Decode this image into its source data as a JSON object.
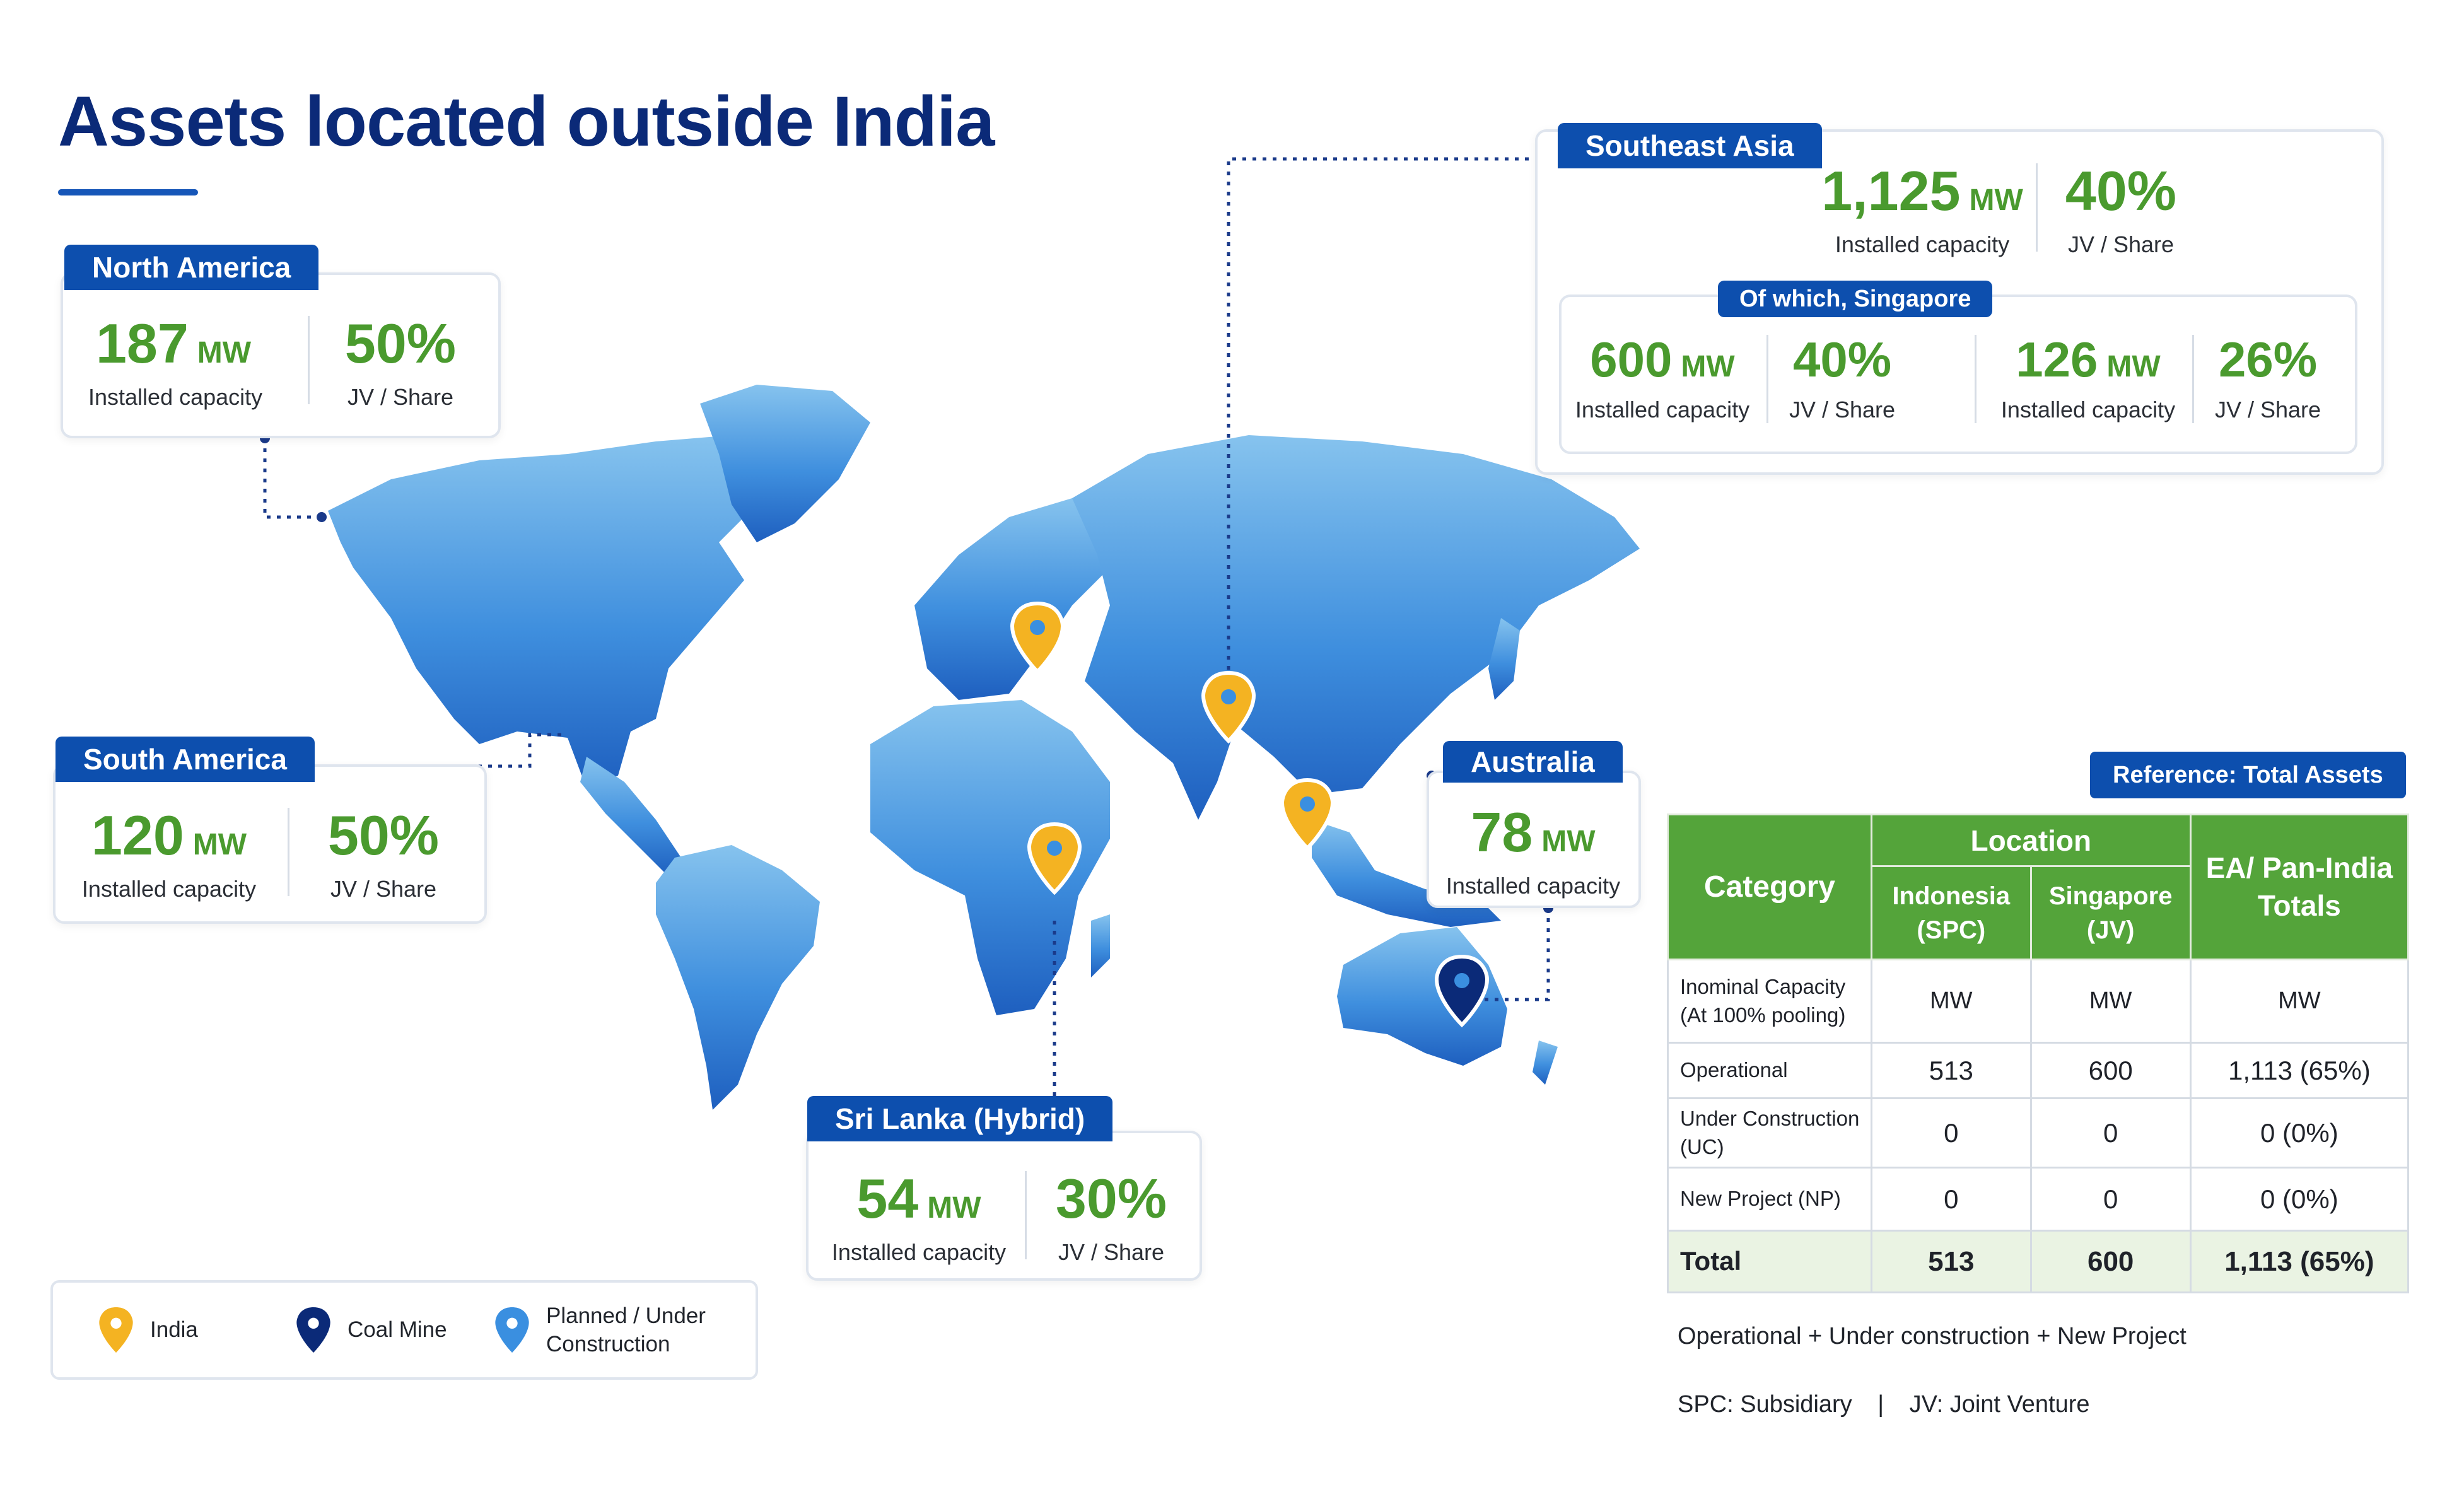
{
  "page": {
    "title": "Assets located outside India"
  },
  "colors": {
    "brand_blue": "#0d4fae",
    "accent_green": "#4a9a2e",
    "table_green": "#54a43a",
    "india_pin": "#f4b322",
    "coal_pin": "#0b2a78",
    "planned_pin": "#3a8fe0"
  },
  "regions": {
    "north_america": {
      "name": "North America",
      "capacity": "187",
      "unit": "MW",
      "capacity_label": "Installed capacity",
      "share": "50%",
      "share_label": "JV / Share"
    },
    "south_america": {
      "name": "South America",
      "capacity": "120",
      "unit": "MW",
      "capacity_label": "Installed capacity",
      "share": "50%",
      "share_label": "JV / Share"
    },
    "sri_lanka": {
      "name": "Sri Lanka (Hybrid)",
      "capacity": "54",
      "unit": "MW",
      "capacity_label": "Installed capacity",
      "share": "30%",
      "share_label": "JV / Share"
    },
    "australia": {
      "name": "Australia",
      "capacity": "78",
      "unit": "MW",
      "capacity_label": "Installed capacity"
    },
    "southeast_asia": {
      "name": "Southeast Asia",
      "capacity": "1,125",
      "unit": "MW",
      "capacity_label": "Installed capacity",
      "share": "40%",
      "share_label": "JV / Share",
      "singapore": {
        "title": "Of which, Singapore",
        "a_capacity": "600",
        "a_unit": "MW",
        "a_capacity_label": "Installed capacity",
        "a_share": "40%",
        "a_share_label": "JV / Share",
        "b_capacity": "126",
        "b_unit": "MW",
        "b_capacity_label": "Installed capacity",
        "b_share": "26%",
        "b_share_label": "JV / Share"
      }
    }
  },
  "legend": {
    "india": "India",
    "coal": "Coal Mine",
    "planned_1": "Planned / Under",
    "planned_2": "Construction"
  },
  "map_pins": [
    {
      "type": "india",
      "icon": "map-pin-icon"
    },
    {
      "type": "coal",
      "icon": "map-pin-icon"
    }
  ],
  "table": {
    "badge": "Reference: Total Assets",
    "header": {
      "category": "Category",
      "location": "Location",
      "indonesia_1": "Indonesia",
      "indonesia_2": "(SPC)",
      "singapore_1": "Singapore",
      "singapore_2": "(JV)",
      "totals_1": "EA/ Pan-India",
      "totals_2": "Totals"
    },
    "rows": [
      {
        "category_1": "Inominal Capacity",
        "category_2": "(At 100% pooling)",
        "indonesia": "MW",
        "singapore": "MW",
        "total": "MW"
      },
      {
        "category_1": "Operational",
        "category_2": "",
        "indonesia": "513",
        "singapore": "600",
        "total": "1,113 (65%)"
      },
      {
        "category_1": "Under Construction",
        "category_2": "(UC)",
        "indonesia": "0",
        "singapore": "0",
        "total": "0 (0%)"
      },
      {
        "category_1": "New Project (NP)",
        "category_2": "",
        "indonesia": "0",
        "singapore": "0",
        "total": "0 (0%)"
      }
    ],
    "total_row": {
      "category": "Total",
      "indonesia": "513",
      "singapore": "600",
      "total": "1,113 (65%)"
    }
  },
  "footnotes": {
    "formula": "Operational + Under construction + New Project",
    "spc": "SPC: Subsidiary",
    "separator": "|",
    "jv": "JV: Joint Venture"
  }
}
